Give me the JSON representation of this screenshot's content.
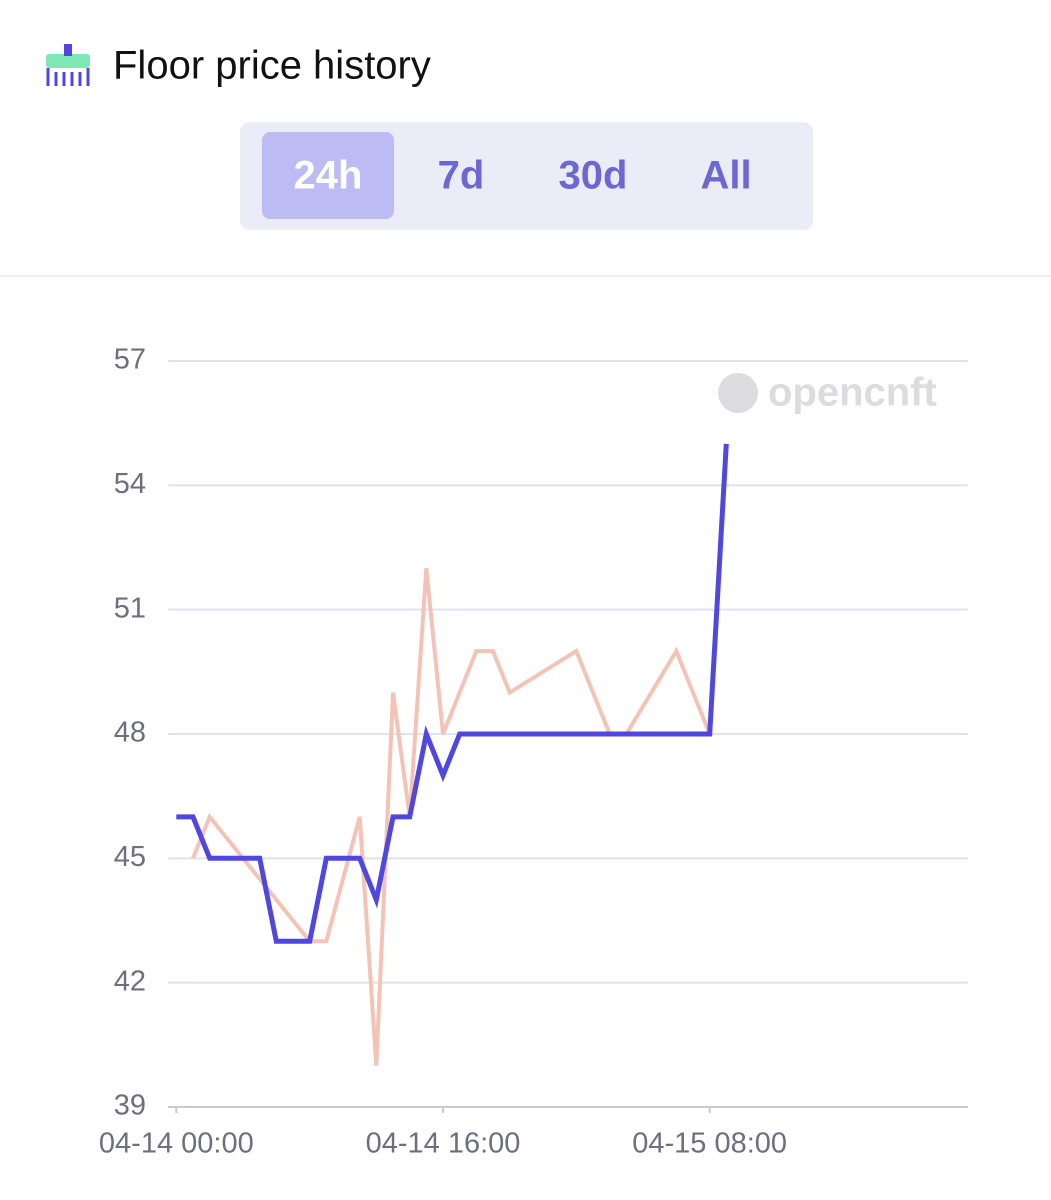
{
  "header": {
    "title": "Floor price history"
  },
  "tabs": [
    {
      "label": "24h",
      "active": true
    },
    {
      "label": "7d",
      "active": false
    },
    {
      "label": "30d",
      "active": false
    },
    {
      "label": "All",
      "active": false
    }
  ],
  "watermark": "opencnft",
  "chart_data": {
    "type": "line",
    "xlim": [
      "04-13 23:30",
      "04-15 23:30"
    ],
    "xticks": [
      "04-14 00:00",
      "04-14 16:00",
      "04-15 08:00"
    ],
    "ylim": [
      39,
      57
    ],
    "yticks": [
      39,
      42,
      45,
      48,
      51,
      54,
      57
    ],
    "grid": true,
    "series": [
      {
        "color": "#f5c2b6",
        "x": [
          "04-14 01:00",
          "04-14 02:00",
          "04-14 08:00",
          "04-14 09:00",
          "04-14 11:00",
          "04-14 12:00",
          "04-14 13:00",
          "04-14 14:00",
          "04-14 15:00",
          "04-14 16:00",
          "04-14 18:00",
          "04-14 19:00",
          "04-14 20:00",
          "04-15 00:00",
          "04-15 02:00",
          "04-15 03:00",
          "04-15 06:00",
          "04-15 08:00"
        ],
        "values": [
          45,
          46,
          43,
          43,
          46,
          40,
          49,
          46,
          52,
          48,
          50,
          50,
          49,
          50,
          48,
          48,
          50,
          48
        ]
      },
      {
        "color": "#5046e0",
        "x": [
          "04-14 00:00",
          "04-14 01:00",
          "04-14 02:00",
          "04-14 05:00",
          "04-14 06:00",
          "04-14 08:00",
          "04-14 09:00",
          "04-14 11:00",
          "04-14 12:00",
          "04-14 13:00",
          "04-14 14:00",
          "04-14 15:00",
          "04-14 16:00",
          "04-14 17:00",
          "04-15 08:00",
          "04-15 09:00"
        ],
        "values": [
          46,
          46,
          45,
          45,
          43,
          43,
          45,
          45,
          44,
          46,
          46,
          48,
          47,
          48,
          48,
          55
        ]
      }
    ]
  }
}
